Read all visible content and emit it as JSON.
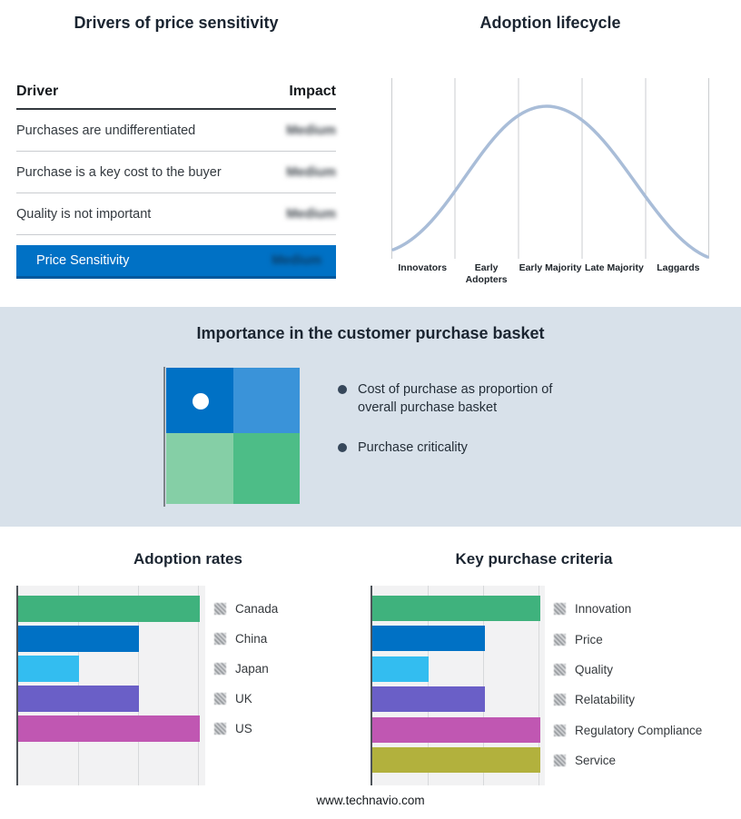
{
  "chart_data": [
    {
      "type": "table",
      "title": "Drivers of price sensitivity",
      "columns": [
        "Driver",
        "Impact"
      ],
      "rows": [
        [
          "Purchases are undifferentiated",
          "Medium"
        ],
        [
          "Purchase is a key cost to the buyer",
          "Medium"
        ],
        [
          "Quality is not important",
          "Medium"
        ],
        [
          "Price Sensitivity",
          "Medium"
        ]
      ],
      "values_blurred": true,
      "highlight_row_index": 3,
      "highlight_color": "#0071c5"
    },
    {
      "type": "line",
      "title": "Adoption lifecycle",
      "curve": "bell",
      "categories": [
        "Innovators",
        "Early Adopters",
        "Early Majority",
        "Late Majority",
        "Laggards"
      ],
      "line_color": "#a9bdd8",
      "grid": true
    },
    {
      "type": "bar",
      "title": "Adoption rates",
      "orientation": "horizontal",
      "categories": [
        "Canada",
        "China",
        "Japan",
        "UK",
        "US"
      ],
      "values": [
        3,
        2,
        1,
        2,
        3
      ],
      "xlim": [
        0,
        3.2
      ],
      "grid": true,
      "legend_position": "right",
      "colors": [
        "#3fb27d",
        "#0071c5",
        "#33bdf0",
        "#6a5fc7",
        "#c057b2"
      ]
    },
    {
      "type": "bar",
      "title": "Key purchase criteria",
      "orientation": "horizontal",
      "categories": [
        "Innovation",
        "Price",
        "Quality",
        "Relatability",
        "Regulatory Compliance",
        "Service"
      ],
      "values": [
        3,
        2,
        1,
        2,
        3,
        3
      ],
      "xlim": [
        0,
        3.1
      ],
      "grid": true,
      "legend_position": "right",
      "colors": [
        "#3fb27d",
        "#0071c5",
        "#33bdf0",
        "#6a5fc7",
        "#c057b2",
        "#b2b13d"
      ]
    }
  ],
  "basket": {
    "title": "Importance in the customer purchase basket",
    "bullets": [
      "Cost of purchase as proportion of overall purchase basket",
      "Purchase criticality"
    ],
    "quadrant_colors": [
      "#0071c5",
      "#3a93d9",
      "#85cfa6",
      "#4dbd87"
    ],
    "marker_color": "#ffffff"
  },
  "footer": {
    "url": "www.technavio.com"
  }
}
